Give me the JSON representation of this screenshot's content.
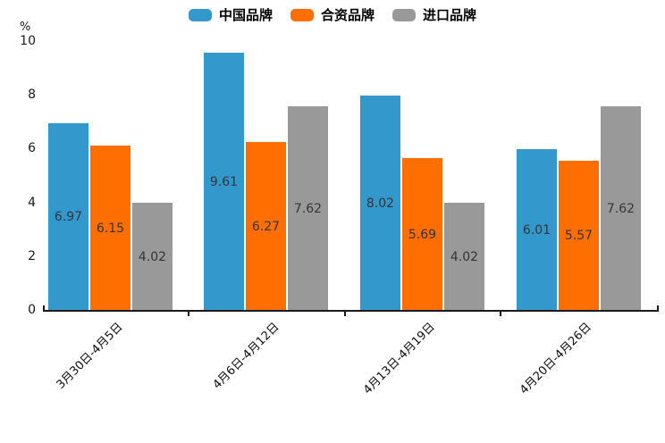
{
  "chart_data": {
    "type": "bar",
    "title": "",
    "xlabel": "",
    "ylabel": "%",
    "categories": [
      "3月30日-4月5日",
      "4月6日-4月12日",
      "4月13日-4月19日",
      "4月20日-4月26日"
    ],
    "series": [
      {
        "name": "中国品牌",
        "color": "#3398CC",
        "values": [
          6.97,
          9.61,
          8.02,
          6.01
        ]
      },
      {
        "name": "合资品牌",
        "color": "#FF6E00",
        "values": [
          6.15,
          6.27,
          5.69,
          5.57
        ]
      },
      {
        "name": "进口品牌",
        "color": "#999999",
        "values": [
          4.02,
          7.62,
          4.02,
          7.62
        ]
      }
    ],
    "ylim": [
      0,
      10
    ],
    "yticks": [
      0,
      2,
      4,
      6,
      8,
      10
    ],
    "grid": false,
    "legend_position": "top",
    "value_labels": true,
    "value_label_color": "#353535",
    "axis_color": "#1a1a1a"
  }
}
